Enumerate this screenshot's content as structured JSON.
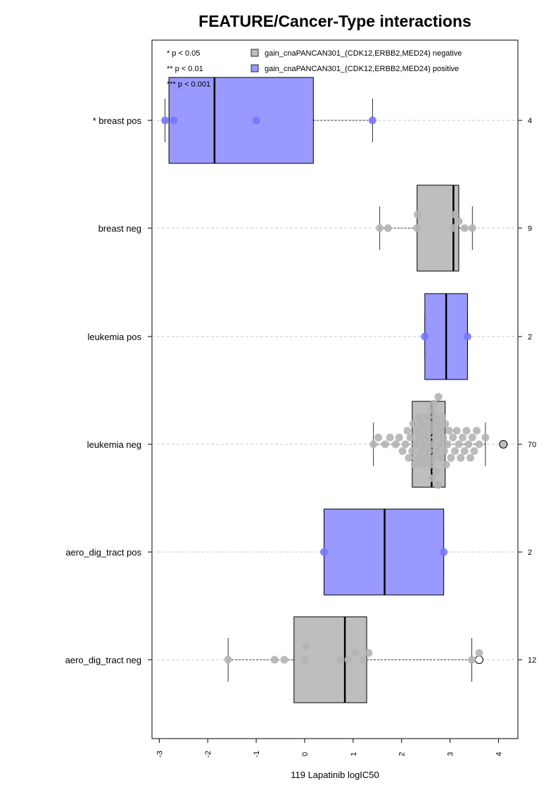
{
  "chart_data": {
    "type": "boxplot",
    "orientation": "horizontal",
    "title": "FEATURE/Cancer-Type interactions",
    "xlabel": "119 Lapatinib logIC50",
    "xlim": [
      -3.15,
      4.4
    ],
    "xticks": [
      -3,
      -2,
      -1,
      0,
      1,
      2,
      3,
      4
    ],
    "significance_legend": [
      "* p < 0.05",
      "** p < 0.01",
      "*** p < 0.001"
    ],
    "legend": [
      {
        "label": "gain_cnaPANCAN301_(CDK12,ERBB2,MED24) negative",
        "color": "#bebebe"
      },
      {
        "label": "gain_cnaPANCAN301_(CDK12,ERBB2,MED24) positive",
        "color": "#9999ff"
      }
    ],
    "groups": [
      {
        "label": "* breast pos",
        "count": "4",
        "status": "positive",
        "whisker_low": -2.88,
        "q1": -2.8,
        "median": -1.86,
        "q3": 0.18,
        "whisker_high": 1.4,
        "points": [
          -2.88,
          -2.7,
          -1.0,
          1.4
        ],
        "outliers": []
      },
      {
        "label": "breast neg",
        "count": "9",
        "status": "negative",
        "whisker_low": 1.55,
        "q1": 2.32,
        "median": 3.07,
        "q3": 3.18,
        "whisker_high": 3.46,
        "points": [
          1.55,
          1.72,
          2.32,
          2.33,
          3.07,
          3.1,
          3.18,
          3.3,
          3.46
        ],
        "outliers": []
      },
      {
        "label": "leukemia pos",
        "count": "2",
        "status": "positive",
        "whisker_low": 2.48,
        "q1": 2.48,
        "median": 2.92,
        "q3": 3.36,
        "whisker_high": 3.36,
        "points": [
          2.48,
          3.36
        ],
        "outliers": []
      },
      {
        "label": "leukemia neg",
        "count": "70",
        "status": "negative",
        "whisker_low": 1.42,
        "q1": 2.22,
        "median": 2.62,
        "q3": 2.9,
        "whisker_high": 3.73,
        "points": [
          1.42,
          1.52,
          1.66,
          1.76,
          1.88,
          1.95,
          2.02,
          2.08,
          2.12,
          2.15,
          2.18,
          2.22,
          2.24,
          2.27,
          2.3,
          2.32,
          2.34,
          2.36,
          2.38,
          2.4,
          2.42,
          2.44,
          2.46,
          2.48,
          2.5,
          2.52,
          2.54,
          2.56,
          2.58,
          2.6,
          2.61,
          2.62,
          2.63,
          2.64,
          2.66,
          2.67,
          2.68,
          2.7,
          2.71,
          2.72,
          2.74,
          2.75,
          2.76,
          2.78,
          2.8,
          2.82,
          2.84,
          2.86,
          2.88,
          2.9,
          2.92,
          2.95,
          2.98,
          3.02,
          3.06,
          3.1,
          3.14,
          3.18,
          3.22,
          3.26,
          3.3,
          3.34,
          3.38,
          3.42,
          3.46,
          3.5,
          3.55,
          3.6,
          3.73
        ],
        "outliers": [
          4.1
        ]
      },
      {
        "label": "aero_dig_tract pos",
        "count": "2",
        "status": "positive",
        "whisker_low": 0.4,
        "q1": 0.4,
        "median": 1.65,
        "q3": 2.87,
        "whisker_high": 2.87,
        "points": [
          0.4,
          2.87
        ],
        "outliers": []
      },
      {
        "label": "aero_dig_tract neg",
        "count": "12",
        "status": "negative",
        "whisker_low": -1.58,
        "q1": -0.22,
        "median": 0.83,
        "q3": 1.28,
        "whisker_high": 3.45,
        "points": [
          -1.58,
          -0.62,
          -0.42,
          0.0,
          0.03,
          0.73,
          0.9,
          1.05,
          1.2,
          1.32,
          3.45,
          3.6
        ],
        "outliers": [
          3.6
        ]
      }
    ]
  }
}
